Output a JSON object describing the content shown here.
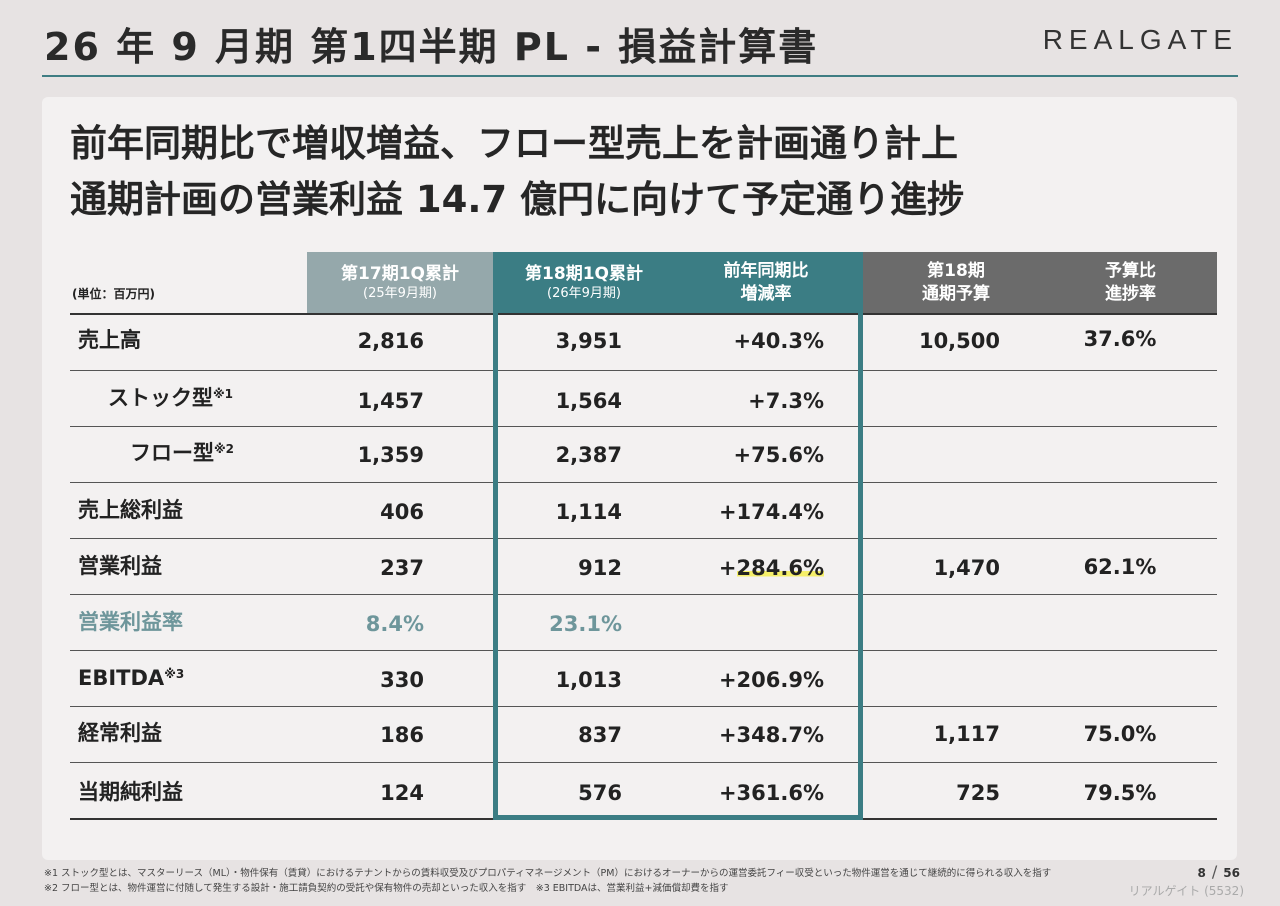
{
  "header": {
    "title": "26 年 9 月期  第1四半期  PL - 損益計算書",
    "logo": "REALGATE"
  },
  "headline": {
    "line1": "前年同期比で増収増益、フロー型売上を計画通り計上",
    "line2": "通期計画の営業利益 14.7 億円に向けて予定通り進捗"
  },
  "table": {
    "unit": "(単位：百万円)",
    "columns": [
      {
        "line1": "第17期1Q累計",
        "line2": "(25年9月期)"
      },
      {
        "line1": "第18期1Q累計",
        "line2": "(26年9月期)"
      },
      {
        "line1": "前年同期比",
        "line2": "増減率"
      },
      {
        "line1": "第18期",
        "line2": "通期予算"
      },
      {
        "line1": "予算比",
        "line2": "進捗率"
      }
    ],
    "rows": [
      {
        "label": "売上高",
        "sup": "",
        "fy17": "2,816",
        "fy18": "3,951",
        "yoy": "+40.3%",
        "budget": "10,500",
        "progress": "37.6%"
      },
      {
        "label": "ストック型",
        "sup": "※1",
        "fy17": "1,457",
        "fy18": "1,564",
        "yoy": "+7.3%",
        "budget": "",
        "progress": ""
      },
      {
        "label": "フロー型",
        "sup": "※2",
        "fy17": "1,359",
        "fy18": "2,387",
        "yoy": "+75.6%",
        "budget": "",
        "progress": ""
      },
      {
        "label": "売上総利益",
        "sup": "",
        "fy17": "406",
        "fy18": "1,114",
        "yoy": "+174.4%",
        "budget": "",
        "progress": ""
      },
      {
        "label": "営業利益",
        "sup": "",
        "fy17": "237",
        "fy18": "912",
        "yoy_prefix": "+",
        "yoy_highlight": "284.6%",
        "budget": "1,470",
        "progress": "62.1%"
      },
      {
        "label": "営業利益率",
        "sup": "",
        "fy17": "8.4%",
        "fy18": "23.1%",
        "yoy": "",
        "budget": "",
        "progress": ""
      },
      {
        "label": "EBITDA",
        "sup": "※3",
        "fy17": "330",
        "fy18": "1,013",
        "yoy": "+206.9%",
        "budget": "",
        "progress": ""
      },
      {
        "label": "経常利益",
        "sup": "",
        "fy17": "186",
        "fy18": "837",
        "yoy": "+348.7%",
        "budget": "1,117",
        "progress": "75.0%"
      },
      {
        "label": "当期純利益",
        "sup": "",
        "fy17": "124",
        "fy18": "576",
        "yoy": "+361.6%",
        "budget": "725",
        "progress": "79.5%"
      }
    ]
  },
  "footnotes": {
    "note1": "※1 ストック型とは、マスターリース（ML）・物件保有（賃貸）におけるテナントからの賃料収受及びプロパティマネージメント（PM）におけるオーナーからの運営委託フィー収受といった物件運営を通じて継続的に得られる収入を指す",
    "note2": "※2 フロー型とは、物件運営に付随して発生する設計・施工請負契約の受託や保有物件の売却といった収入を指す　※3 EBITDAは、営業利益+減価償却費を指す"
  },
  "page": {
    "current": "8",
    "total": "56"
  },
  "company": "リアルゲイト (5532)",
  "colors": {
    "accent": "#3b7d84",
    "header_fy17": "#95a8ab",
    "header_budget": "#6b6b6b",
    "highlight": "#f5ef6a",
    "margin_text": "#6e969b"
  }
}
